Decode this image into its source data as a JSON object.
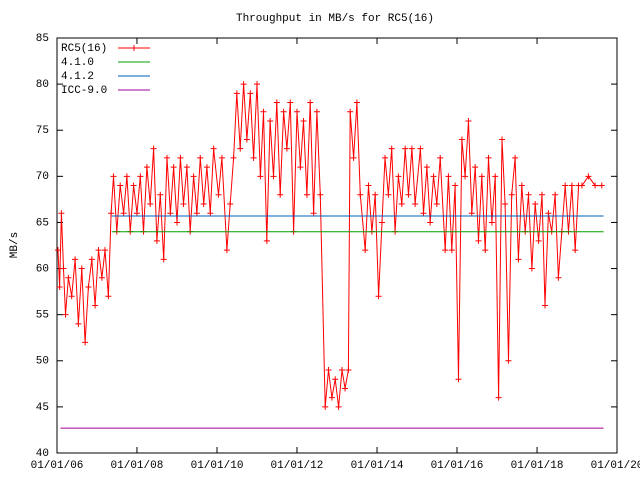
{
  "chart_data": {
    "type": "line",
    "title": "Throughput in MB/s for RC5(16)",
    "y_label": "MB/s",
    "xlim": [
      "2006-01-01",
      "2020-01-01"
    ],
    "xticks": [
      {
        "value": "2006-01-01",
        "label": "01/01/06"
      },
      {
        "value": "2008-01-01",
        "label": "01/01/08"
      },
      {
        "value": "2010-01-01",
        "label": "01/01/10"
      },
      {
        "value": "2012-01-01",
        "label": "01/01/12"
      },
      {
        "value": "2014-01-01",
        "label": "01/01/14"
      },
      {
        "value": "2016-01-01",
        "label": "01/01/16"
      },
      {
        "value": "2018-01-01",
        "label": "01/01/18"
      },
      {
        "value": "2020-01-01",
        "label": "01/01/20"
      }
    ],
    "ylim": [
      40,
      85
    ],
    "yticks": [
      40,
      45,
      50,
      55,
      60,
      65,
      70,
      75,
      80,
      85
    ],
    "legend": "top-left",
    "series": [
      {
        "name": "RC5(16)",
        "color": "#ff0000",
        "markers": true,
        "x": [
          "2006-01-10",
          "2006-01-25",
          "2006-02-10",
          "2006-03-01",
          "2006-03-20",
          "2006-04-15",
          "2006-05-15",
          "2006-06-15",
          "2006-07-15",
          "2006-08-15",
          "2006-09-15",
          "2006-10-15",
          "2006-11-15",
          "2006-12-15",
          "2007-01-15",
          "2007-02-15",
          "2007-03-15",
          "2007-04-15",
          "2007-05-10",
          "2007-06-01",
          "2007-07-01",
          "2007-08-01",
          "2007-09-01",
          "2007-10-01",
          "2007-11-01",
          "2007-12-01",
          "2008-01-01",
          "2008-02-01",
          "2008-03-01",
          "2008-04-01",
          "2008-05-01",
          "2008-06-01",
          "2008-07-01",
          "2008-08-01",
          "2008-09-01",
          "2008-10-01",
          "2008-11-01",
          "2008-12-01",
          "2009-01-01",
          "2009-02-01",
          "2009-03-01",
          "2009-04-01",
          "2009-05-01",
          "2009-06-01",
          "2009-07-01",
          "2009-08-01",
          "2009-09-01",
          "2009-10-01",
          "2009-11-01",
          "2009-12-01",
          "2010-01-15",
          "2010-02-15",
          "2010-04-01",
          "2010-05-01",
          "2010-06-01",
          "2010-07-01",
          "2010-08-01",
          "2010-09-01",
          "2010-10-01",
          "2010-11-01",
          "2010-12-01",
          "2011-01-01",
          "2011-02-01",
          "2011-03-01",
          "2011-04-01",
          "2011-05-01",
          "2011-06-01",
          "2011-07-01",
          "2011-08-01",
          "2011-09-01",
          "2011-10-01",
          "2011-11-01",
          "2011-12-01",
          "2012-01-01",
          "2012-02-01",
          "2012-03-01",
          "2012-04-01",
          "2012-05-01",
          "2012-06-01",
          "2012-07-01",
          "2012-08-01",
          "2012-09-15",
          "2012-10-15",
          "2012-11-15",
          "2012-12-15",
          "2013-01-15",
          "2013-02-15",
          "2013-03-15",
          "2013-04-15",
          "2013-05-01",
          "2013-06-01",
          "2013-07-01",
          "2013-08-01",
          "2013-09-15",
          "2013-10-15",
          "2013-11-15",
          "2013-12-15",
          "2014-01-15",
          "2014-02-15",
          "2014-03-15",
          "2014-04-15",
          "2014-05-15",
          "2014-06-15",
          "2014-07-15",
          "2014-08-15",
          "2014-09-15",
          "2014-10-15",
          "2014-11-15",
          "2014-12-15",
          "2015-02-01",
          "2015-03-01",
          "2015-04-01",
          "2015-05-01",
          "2015-06-01",
          "2015-07-01",
          "2015-08-01",
          "2015-09-15",
          "2015-10-15",
          "2015-11-15",
          "2015-12-15",
          "2016-01-15",
          "2016-02-15",
          "2016-03-15",
          "2016-04-15",
          "2016-05-15",
          "2016-06-15",
          "2016-07-15",
          "2016-08-15",
          "2016-09-15",
          "2016-10-15",
          "2016-11-15",
          "2016-12-15",
          "2017-01-15",
          "2017-02-15",
          "2017-03-15",
          "2017-04-15",
          "2017-05-15",
          "2017-06-15",
          "2017-07-15",
          "2017-08-15",
          "2017-09-15",
          "2017-10-15",
          "2017-11-15",
          "2017-12-15",
          "2018-01-15",
          "2018-02-15",
          "2018-03-15",
          "2018-04-15",
          "2018-05-15",
          "2018-06-15",
          "2018-07-15",
          "2018-08-15",
          "2018-09-15",
          "2018-10-15",
          "2018-11-15",
          "2018-12-15",
          "2019-01-15",
          "2019-02-15",
          "2019-04-15",
          "2019-06-15",
          "2019-08-15"
        ],
        "values": [
          62,
          58,
          66,
          60,
          55,
          59,
          57,
          61,
          54,
          60,
          52,
          58,
          61,
          56,
          62,
          59,
          62,
          57,
          66,
          70,
          64,
          69,
          66,
          70,
          64,
          69,
          66,
          70,
          64,
          71,
          67,
          73,
          63,
          68,
          61,
          72,
          66,
          71,
          65,
          72,
          67,
          71,
          64,
          70,
          66,
          72,
          67,
          71,
          66,
          73,
          68,
          72,
          62,
          67,
          72,
          79,
          73,
          80,
          74,
          79,
          72,
          80,
          70,
          77,
          63,
          76,
          70,
          78,
          68,
          77,
          73,
          78,
          64,
          77,
          71,
          76,
          68,
          78,
          66,
          77,
          68,
          45,
          49,
          46,
          48,
          45,
          49,
          47,
          49,
          77,
          72,
          78,
          68,
          62,
          69,
          64,
          68,
          57,
          65,
          72,
          68,
          73,
          64,
          70,
          67,
          73,
          68,
          73,
          67,
          73,
          66,
          71,
          65,
          70,
          67,
          72,
          62,
          70,
          62,
          69,
          48,
          74,
          70,
          76,
          66,
          71,
          63,
          70,
          62,
          72,
          65,
          70,
          46,
          74,
          67,
          50,
          68,
          72,
          61,
          69,
          64,
          68,
          60,
          67,
          63,
          68,
          56,
          66,
          64,
          68,
          59,
          64,
          69,
          64,
          69,
          62,
          69,
          69,
          70,
          69,
          69
        ]
      },
      {
        "name": "4.1.0",
        "color": "#00a000",
        "markers": false,
        "x": [
          "2007-05-15",
          "2019-09-01"
        ],
        "values": [
          64,
          64
        ]
      },
      {
        "name": "4.1.2",
        "color": "#0060c0",
        "markers": false,
        "x": [
          "2007-05-15",
          "2019-09-01"
        ],
        "values": [
          65.7,
          65.7
        ]
      },
      {
        "name": "ICC-9.0",
        "color": "#a000a0",
        "markers": false,
        "x": [
          "2006-02-01",
          "2019-09-01"
        ],
        "values": [
          42.7,
          42.7
        ]
      }
    ]
  }
}
